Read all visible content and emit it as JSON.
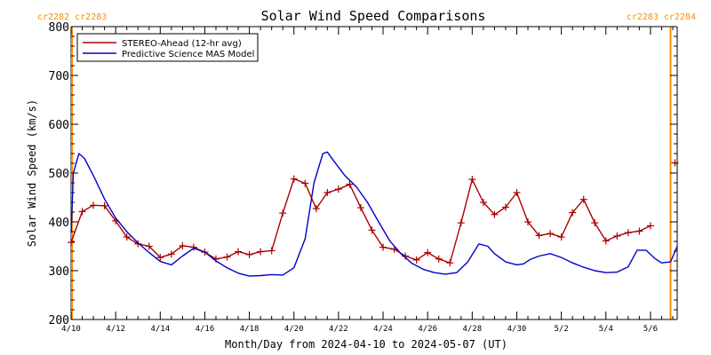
{
  "chart_data": {
    "type": "line",
    "title": "Solar Wind Speed Comparisons",
    "xlabel": "Month/Day from 2024-04-10 to 2024-05-07 (UT)",
    "ylabel": "Solar Wind Speed (km/s)",
    "ylim": [
      200,
      800
    ],
    "xlim_days": [
      0,
      27.2
    ],
    "y_ticks": [
      200,
      300,
      400,
      500,
      600,
      700,
      800
    ],
    "x_tick_labels": [
      {
        "day": 0,
        "label": "4/10"
      },
      {
        "day": 2,
        "label": "4/12"
      },
      {
        "day": 4,
        "label": "4/14"
      },
      {
        "day": 6,
        "label": "4/16"
      },
      {
        "day": 8,
        "label": "4/18"
      },
      {
        "day": 10,
        "label": "4/20"
      },
      {
        "day": 12,
        "label": "4/22"
      },
      {
        "day": 14,
        "label": "4/24"
      },
      {
        "day": 16,
        "label": "4/26"
      },
      {
        "day": 18,
        "label": "4/28"
      },
      {
        "day": 20,
        "label": "4/30"
      },
      {
        "day": 22,
        "label": "5/2"
      },
      {
        "day": 24,
        "label": "5/4"
      },
      {
        "day": 26,
        "label": "5/6"
      }
    ],
    "carrington_labels": {
      "left": "cr2282 cr2283",
      "right": "cr2283 cr2284",
      "boundary_day": 26.9
    },
    "legend_position": "top-left",
    "series": [
      {
        "name": "STEREO-Ahead (12-hr avg)",
        "color": "#aa0000",
        "marker": "plus",
        "points": [
          [
            0.0,
            358
          ],
          [
            0.5,
            421
          ],
          [
            1.0,
            434
          ],
          [
            1.5,
            433
          ],
          [
            2.0,
            402
          ],
          [
            2.5,
            369
          ],
          [
            3.0,
            355
          ],
          [
            3.5,
            350
          ],
          [
            4.0,
            327
          ],
          [
            4.5,
            334
          ],
          [
            5.0,
            351
          ],
          [
            5.5,
            348
          ],
          [
            6.0,
            338
          ],
          [
            6.5,
            324
          ],
          [
            7.0,
            328
          ],
          [
            7.5,
            339
          ],
          [
            8.0,
            333
          ],
          [
            8.5,
            339
          ],
          [
            9.0,
            341
          ],
          [
            9.5,
            418
          ],
          [
            10.0,
            488
          ],
          [
            10.5,
            479
          ],
          [
            11.0,
            427
          ],
          [
            11.5,
            460
          ],
          [
            12.0,
            467
          ],
          [
            12.5,
            477
          ],
          [
            13.0,
            429
          ],
          [
            13.5,
            383
          ],
          [
            14.0,
            348
          ],
          [
            14.5,
            344
          ],
          [
            15.0,
            330
          ],
          [
            15.5,
            322
          ],
          [
            16.0,
            337
          ],
          [
            16.5,
            324
          ],
          [
            17.0,
            316
          ],
          [
            17.5,
            398
          ],
          [
            18.0,
            487
          ],
          [
            18.5,
            440
          ],
          [
            19.0,
            415
          ],
          [
            19.5,
            430
          ],
          [
            20.0,
            460
          ],
          [
            20.5,
            400
          ],
          [
            21.0,
            372
          ],
          [
            21.5,
            376
          ],
          [
            22.0,
            369
          ],
          [
            22.5,
            419
          ],
          [
            23.0,
            446
          ],
          [
            23.5,
            398
          ],
          [
            24.0,
            361
          ],
          [
            24.5,
            371
          ],
          [
            25.0,
            378
          ],
          [
            25.5,
            381
          ],
          [
            26.0,
            392
          ]
        ],
        "extra_points": [
          [
            27.1,
            521
          ]
        ]
      },
      {
        "name": "Predictive Science MAS Model",
        "color": "#0000cc",
        "marker": "none",
        "points": [
          [
            0.0,
            378
          ],
          [
            0.1,
            500
          ],
          [
            0.35,
            540
          ],
          [
            0.6,
            530
          ],
          [
            1.0,
            495
          ],
          [
            1.5,
            447
          ],
          [
            2.0,
            408
          ],
          [
            2.5,
            380
          ],
          [
            3.0,
            357
          ],
          [
            3.5,
            337
          ],
          [
            4.0,
            319
          ],
          [
            4.5,
            312
          ],
          [
            5.0,
            330
          ],
          [
            5.5,
            346
          ],
          [
            6.0,
            338
          ],
          [
            6.5,
            320
          ],
          [
            7.0,
            306
          ],
          [
            7.5,
            295
          ],
          [
            8.0,
            289
          ],
          [
            8.5,
            290
          ],
          [
            9.0,
            292
          ],
          [
            9.5,
            291
          ],
          [
            10.0,
            306
          ],
          [
            10.5,
            365
          ],
          [
            10.9,
            480
          ],
          [
            11.3,
            540
          ],
          [
            11.5,
            543
          ],
          [
            11.8,
            524
          ],
          [
            12.3,
            494
          ],
          [
            12.8,
            472
          ],
          [
            13.3,
            440
          ],
          [
            13.8,
            400
          ],
          [
            14.3,
            361
          ],
          [
            14.8,
            335
          ],
          [
            15.3,
            315
          ],
          [
            15.8,
            303
          ],
          [
            16.3,
            296
          ],
          [
            16.8,
            293
          ],
          [
            17.3,
            296
          ],
          [
            17.8,
            318
          ],
          [
            18.3,
            355
          ],
          [
            18.7,
            350
          ],
          [
            19.0,
            335
          ],
          [
            19.5,
            318
          ],
          [
            20.0,
            312
          ],
          [
            20.3,
            314
          ],
          [
            20.6,
            323
          ],
          [
            21.0,
            330
          ],
          [
            21.5,
            335
          ],
          [
            22.0,
            327
          ],
          [
            22.5,
            316
          ],
          [
            23.0,
            307
          ],
          [
            23.5,
            300
          ],
          [
            24.0,
            296
          ],
          [
            24.5,
            297
          ],
          [
            25.0,
            308
          ],
          [
            25.4,
            342
          ],
          [
            25.8,
            342
          ],
          [
            26.2,
            325
          ],
          [
            26.5,
            316
          ],
          [
            26.9,
            318
          ],
          [
            27.2,
            350
          ]
        ]
      }
    ]
  }
}
